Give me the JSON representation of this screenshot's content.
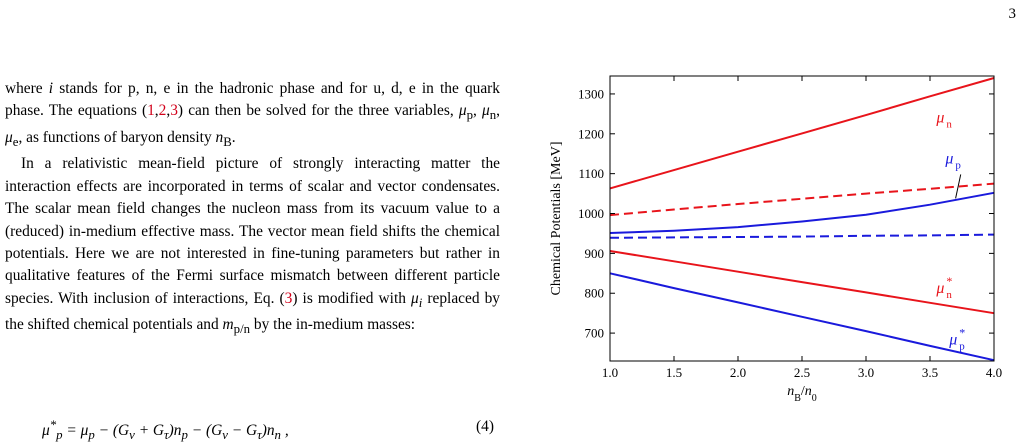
{
  "page_number": "3",
  "paragraphs": [
    "where i stands for p, n, e in the hadronic phase and for u, d, e in the quark phase. The equations (1,2,3) can then be solved for the three variables, μp, μn, μe, as functions of baryon density nB.",
    "In a relativistic mean-field picture of strongly interacting matter the interaction effects are incorporated in terms of scalar and vector condensates. The scalar mean field changes the nucleon mass from its vacuum value to a (reduced) in-medium effective mass. The vector mean field shifts the chemical potentials. Here we are not interested in fine-tuning parameters but rather in qualitative features of the Fermi surface mismatch between different particle species. With inclusion of interactions, Eq. (3) is modified with μi replaced by the shifted chemical potentials and mp/n by the in-medium masses:"
  ],
  "equation": {
    "text": "μ*p = μp − (Gv + Gτ)np − (Gv − Gτ)nn ,",
    "number": "(4)"
  },
  "chart_data": {
    "type": "line",
    "xlabel": "nB/n0",
    "ylabel": "Chemical Potentials [MeV]",
    "xlim": [
      1.0,
      4.0
    ],
    "ylim": [
      630,
      1345
    ],
    "x_ticks": [
      1.0,
      1.5,
      2.0,
      2.5,
      3.0,
      3.5,
      4.0
    ],
    "x_tick_labels": [
      "1.0",
      "1.5",
      "2.0",
      "2.5",
      "3.0",
      "3.5",
      "4.0"
    ],
    "y_ticks": [
      700,
      800,
      900,
      1000,
      1100,
      1200,
      1300
    ],
    "y_tick_labels": [
      "700",
      "800",
      "900",
      "1000",
      "1100",
      "1200",
      "1300"
    ],
    "grid": false,
    "colors": {
      "red": "#e8141b",
      "blue": "#1a1adc"
    },
    "series": [
      {
        "name": "μn",
        "color": "red",
        "dash": "solid",
        "x": [
          1.0,
          1.5,
          2.0,
          2.5,
          3.0,
          3.5,
          4.0
        ],
        "y": [
          1063,
          1109,
          1155,
          1201,
          1247,
          1294,
          1340
        ]
      },
      {
        "name": "",
        "color": "red",
        "dash": "dashed",
        "x": [
          1.0,
          1.5,
          2.0,
          2.5,
          3.0,
          3.5,
          4.0
        ],
        "y": [
          996,
          1010,
          1024,
          1037,
          1050,
          1062,
          1075
        ]
      },
      {
        "name": "μp",
        "color": "blue",
        "dash": "solid",
        "x": [
          1.0,
          1.5,
          2.0,
          2.5,
          3.0,
          3.5,
          4.0
        ],
        "y": [
          951,
          957,
          966,
          980,
          997,
          1022,
          1052
        ]
      },
      {
        "name": "",
        "color": "blue",
        "dash": "dashed",
        "x": [
          1.0,
          1.5,
          2.0,
          2.5,
          3.0,
          3.5,
          4.0
        ],
        "y": [
          939,
          940,
          941,
          942,
          944,
          945,
          947
        ]
      },
      {
        "name": "μn*",
        "color": "red",
        "dash": "solid",
        "x": [
          1.0,
          1.5,
          2.0,
          2.5,
          3.0,
          3.5,
          4.0
        ],
        "y": [
          906,
          880,
          854,
          828,
          802,
          776,
          750
        ]
      },
      {
        "name": "μp*",
        "color": "blue",
        "dash": "solid",
        "x": [
          1.0,
          1.5,
          2.0,
          2.5,
          3.0,
          3.5,
          4.0
        ],
        "y": [
          850,
          813,
          777,
          741,
          705,
          668,
          632
        ]
      }
    ],
    "annotations": [
      {
        "base": "μ",
        "sub": "n",
        "sup": "",
        "color": "red"
      },
      {
        "base": "μ",
        "sub": "p",
        "sup": "",
        "color": "blue"
      },
      {
        "base": "μ",
        "sub": "n",
        "sup": "*",
        "color": "red"
      },
      {
        "base": "μ",
        "sub": "p",
        "sup": "*",
        "color": "blue"
      }
    ]
  }
}
